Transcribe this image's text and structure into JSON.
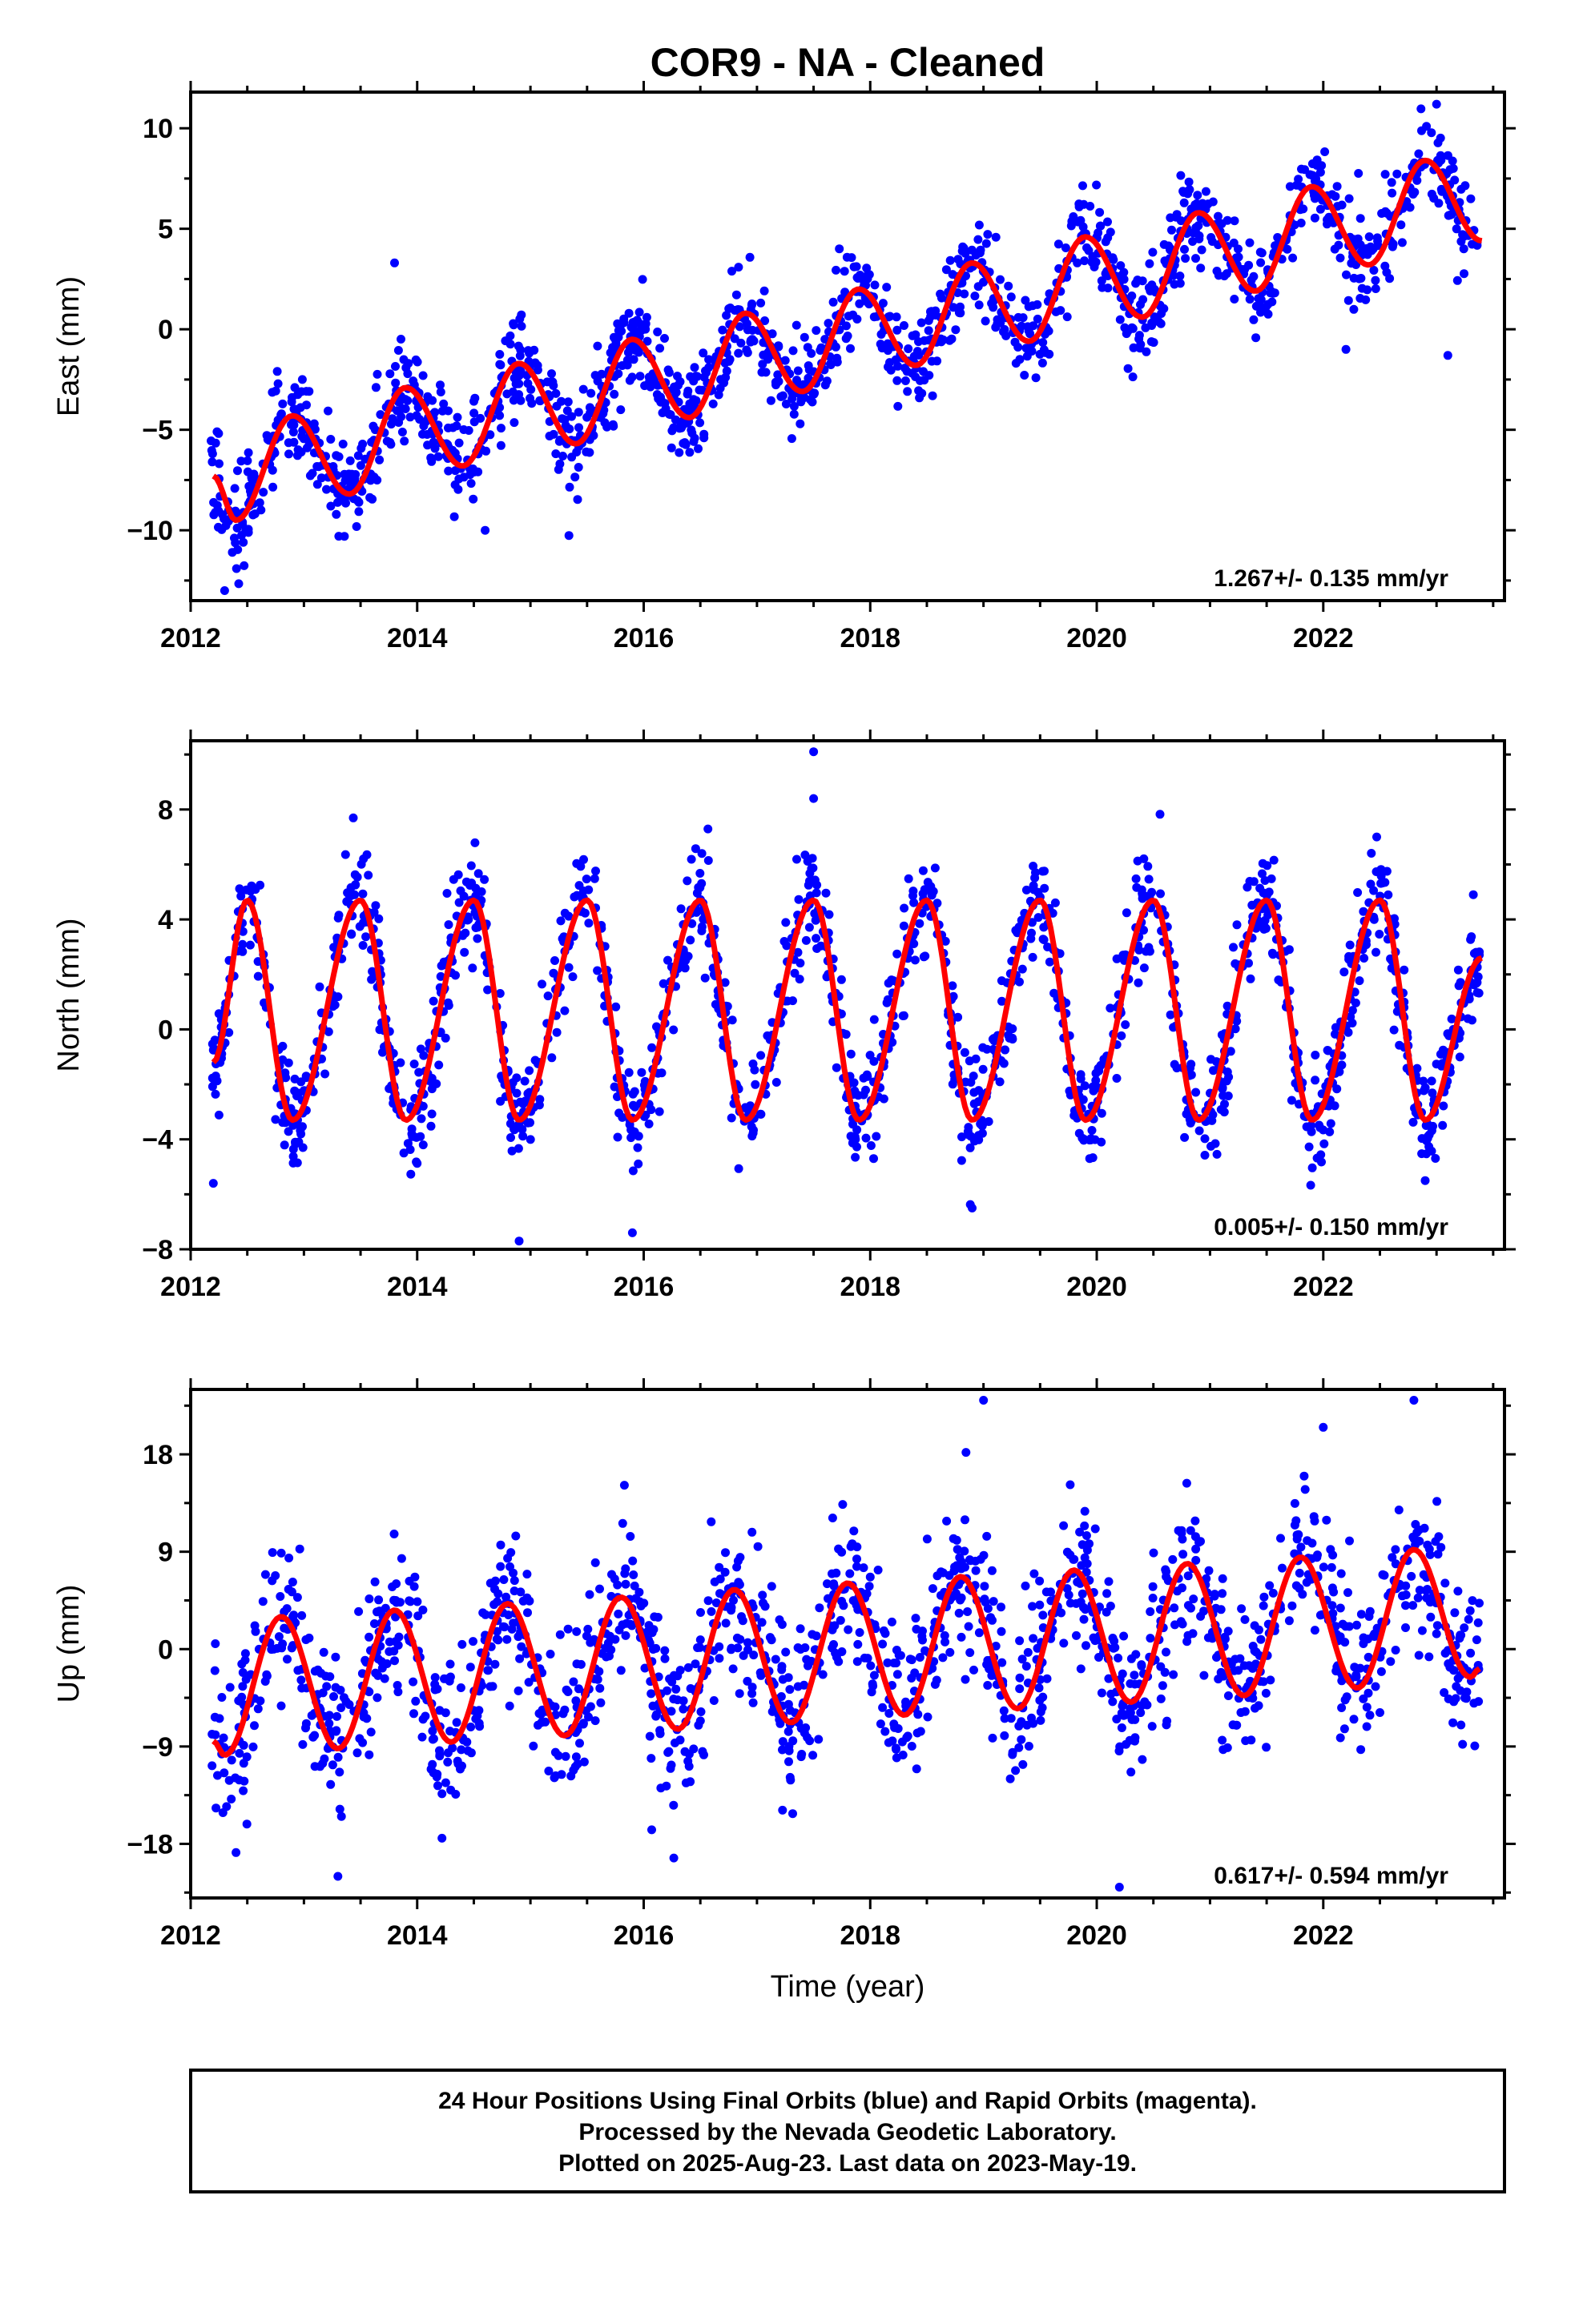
{
  "title": "COR9  - NA - Cleaned",
  "footer": {
    "lines": [
      "24 Hour Positions Using Final Orbits (blue) and Rapid Orbits (magenta).",
      "Processed by the Nevada Geodetic Laboratory.",
      "Plotted on 2025-Aug-23. Last data on 2023-May-19."
    ]
  },
  "colors": {
    "points": "#0000ff",
    "model": "#ff0000",
    "frame": "#000000"
  },
  "chart_data": [
    {
      "type": "scatter",
      "ylabel": "East (mm)",
      "xlabel": "",
      "rate_label": "1.267+/- 0.135 mm/yr",
      "xlim": [
        2012.0,
        2023.6
      ],
      "ylim": [
        -13.5,
        11.8
      ],
      "xticks": [
        2012,
        2014,
        2016,
        2018,
        2020,
        2022
      ],
      "yticks": [
        10,
        5,
        0,
        -5,
        -10
      ],
      "ytick_labels": [
        "10",
        "5",
        "0",
        "−5",
        "−10"
      ],
      "x_range": [
        2012.18,
        2023.38
      ],
      "model_x": [
        2012.2,
        2012.4,
        2012.9,
        2013.4,
        2013.9,
        2014.4,
        2014.9,
        2015.4,
        2015.9,
        2016.4,
        2016.9,
        2017.4,
        2017.9,
        2018.4,
        2018.9,
        2019.4,
        2019.9,
        2020.4,
        2020.9,
        2021.4,
        2021.9,
        2022.4,
        2022.9,
        2023.4
      ],
      "model_y": [
        -7.3,
        -9.5,
        -4.3,
        -8.2,
        -2.9,
        -6.8,
        -1.7,
        -5.7,
        -0.5,
        -4.4,
        0.8,
        -3.1,
        2.0,
        -1.8,
        3.3,
        -0.6,
        4.6,
        0.6,
        5.8,
        1.9,
        7.1,
        3.2,
        8.4,
        4.4
      ],
      "scatter_sigma": 1.2,
      "outliers": [
        [
          2012.3,
          -13.0
        ],
        [
          2013.8,
          3.3
        ],
        [
          2014.6,
          -10.0
        ],
        [
          2023.0,
          11.2
        ],
        [
          2023.1,
          -1.3
        ],
        [
          2022.2,
          -1.0
        ]
      ]
    },
    {
      "type": "scatter",
      "ylabel": "North (mm)",
      "xlabel": "",
      "rate_label": "0.005+/- 0.150 mm/yr",
      "xlim": [
        2012.0,
        2023.6
      ],
      "ylim": [
        -8.0,
        10.5
      ],
      "xticks": [
        2012,
        2014,
        2016,
        2018,
        2020,
        2022
      ],
      "yticks": [
        8,
        4,
        0,
        -4,
        -8
      ],
      "ytick_labels": [
        "8",
        "4",
        "0",
        "−4",
        "−8"
      ],
      "x_range": [
        2012.18,
        2023.38
      ],
      "model_x": [
        2012.2,
        2012.5,
        2012.9,
        2013.5,
        2013.9,
        2014.5,
        2014.9,
        2015.5,
        2015.9,
        2016.5,
        2016.9,
        2017.5,
        2017.9,
        2018.5,
        2018.9,
        2019.5,
        2019.9,
        2020.5,
        2020.9,
        2021.5,
        2021.9,
        2022.5,
        2022.9,
        2023.4
      ],
      "model_y": [
        -1.2,
        4.7,
        -3.3,
        4.7,
        -3.3,
        4.7,
        -3.3,
        4.7,
        -3.3,
        4.7,
        -3.3,
        4.7,
        -3.3,
        4.7,
        -3.3,
        4.7,
        -3.3,
        4.7,
        -3.3,
        4.7,
        -3.3,
        4.7,
        -3.3,
        2.6
      ],
      "scatter_sigma": 1.0,
      "outliers": [
        [
          2017.5,
          10.1
        ],
        [
          2017.5,
          8.4
        ],
        [
          2014.9,
          -7.7
        ],
        [
          2015.9,
          -7.4
        ],
        [
          2018.9,
          -6.5
        ],
        [
          2012.2,
          -5.6
        ],
        [
          2022.9,
          -5.5
        ]
      ]
    },
    {
      "type": "scatter",
      "ylabel": "Up (mm)",
      "xlabel": "Time (year)",
      "rate_label": "0.617+/- 0.594 mm/yr",
      "xlim": [
        2012.0,
        2023.6
      ],
      "ylim": [
        -23.0,
        24.0
      ],
      "xticks": [
        2012,
        2014,
        2016,
        2018,
        2020,
        2022
      ],
      "yticks": [
        18,
        9,
        0,
        -9,
        -18
      ],
      "ytick_labels": [
        "18",
        "9",
        "0",
        "−9",
        "−18"
      ],
      "x_range": [
        2012.18,
        2023.38
      ],
      "model_x": [
        2012.2,
        2012.3,
        2012.8,
        2013.3,
        2013.8,
        2014.3,
        2014.8,
        2015.3,
        2015.8,
        2016.3,
        2016.8,
        2017.3,
        2017.8,
        2018.3,
        2018.8,
        2019.3,
        2019.8,
        2020.3,
        2020.8,
        2021.3,
        2021.8,
        2022.3,
        2022.8,
        2023.3,
        2023.38
      ],
      "model_y": [
        -8.5,
        -9.8,
        3.0,
        -9.2,
        3.6,
        -8.6,
        4.2,
        -8.0,
        4.8,
        -7.4,
        5.5,
        -6.8,
        6.1,
        -6.1,
        6.7,
        -5.5,
        7.3,
        -4.9,
        7.9,
        -4.3,
        8.5,
        -3.6,
        9.2,
        -2.6,
        -1.8
      ],
      "scatter_sigma": 3.8,
      "outliers": [
        [
          2019.0,
          23.0
        ],
        [
          2022.8,
          23.0
        ],
        [
          2013.3,
          -21.0
        ],
        [
          2020.2,
          -22.0
        ],
        [
          2012.4,
          -18.8
        ],
        [
          2022.0,
          20.5
        ]
      ]
    }
  ]
}
